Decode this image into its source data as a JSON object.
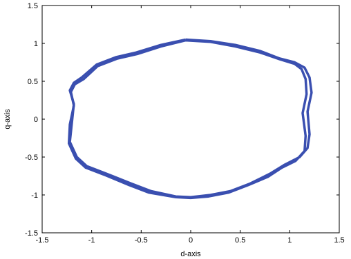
{
  "chart_data": {
    "type": "line",
    "title": "",
    "xlabel": "d-axis",
    "ylabel": "q-axis",
    "xlim": [
      -1.5,
      1.5
    ],
    "ylim": [
      -1.5,
      1.5
    ],
    "x_ticks": [
      -1.5,
      -1,
      -0.5,
      0,
      0.5,
      1,
      1.5
    ],
    "y_ticks": [
      -1.5,
      -1,
      -0.5,
      0,
      0.5,
      1,
      1.5
    ],
    "x_tick_labels": [
      "-1.5",
      "-1",
      "-0.5",
      "0",
      "0.5",
      "1",
      "1.5"
    ],
    "y_tick_labels": [
      "-1.5",
      "-1",
      "-0.5",
      "0",
      "0.5",
      "1",
      "1.5"
    ],
    "grid": false,
    "line_color": "#3a4fb0",
    "series": [
      {
        "x": [
          -0.05,
          0.2,
          0.45,
          0.7,
          0.9,
          1.05,
          1.15,
          1.2,
          1.22,
          1.18,
          1.2,
          1.18,
          1.1,
          0.95,
          0.8,
          0.6,
          0.4,
          0.2,
          0.0,
          -0.15,
          -0.4,
          -0.6,
          -0.85,
          -1.05,
          -1.15,
          -1.22,
          -1.2,
          -1.18,
          -1.22,
          -1.18,
          -1.1,
          -0.95,
          -0.75,
          -0.55,
          -0.3,
          -0.05
        ],
        "y": [
          1.05,
          1.03,
          0.98,
          0.9,
          0.8,
          0.75,
          0.68,
          0.55,
          0.35,
          0.1,
          -0.2,
          -0.38,
          -0.5,
          -0.6,
          -0.72,
          -0.85,
          -0.95,
          -1.0,
          -1.03,
          -1.02,
          -0.95,
          -0.85,
          -0.72,
          -0.62,
          -0.5,
          -0.3,
          -0.05,
          0.2,
          0.38,
          0.48,
          0.55,
          0.72,
          0.82,
          0.88,
          0.98,
          1.05
        ]
      },
      {
        "x": [
          -0.05,
          0.2,
          0.45,
          0.7,
          0.9,
          1.05,
          1.12,
          1.16,
          1.17,
          1.13,
          1.16,
          1.15,
          1.06,
          0.92,
          0.78,
          0.58,
          0.38,
          0.18,
          0.0,
          -0.15,
          -0.42,
          -0.62,
          -0.86,
          -1.06,
          -1.16,
          -1.23,
          -1.22,
          -1.18,
          -1.21,
          -1.17,
          -1.08,
          -0.94,
          -0.74,
          -0.54,
          -0.3,
          -0.05
        ],
        "y": [
          1.04,
          1.02,
          0.96,
          0.88,
          0.79,
          0.73,
          0.66,
          0.53,
          0.33,
          0.08,
          -0.22,
          -0.42,
          -0.55,
          -0.64,
          -0.76,
          -0.87,
          -0.97,
          -1.02,
          -1.04,
          -1.03,
          -0.97,
          -0.87,
          -0.74,
          -0.64,
          -0.52,
          -0.32,
          -0.07,
          0.18,
          0.36,
          0.46,
          0.53,
          0.7,
          0.8,
          0.86,
          0.96,
          1.04
        ]
      }
    ]
  }
}
